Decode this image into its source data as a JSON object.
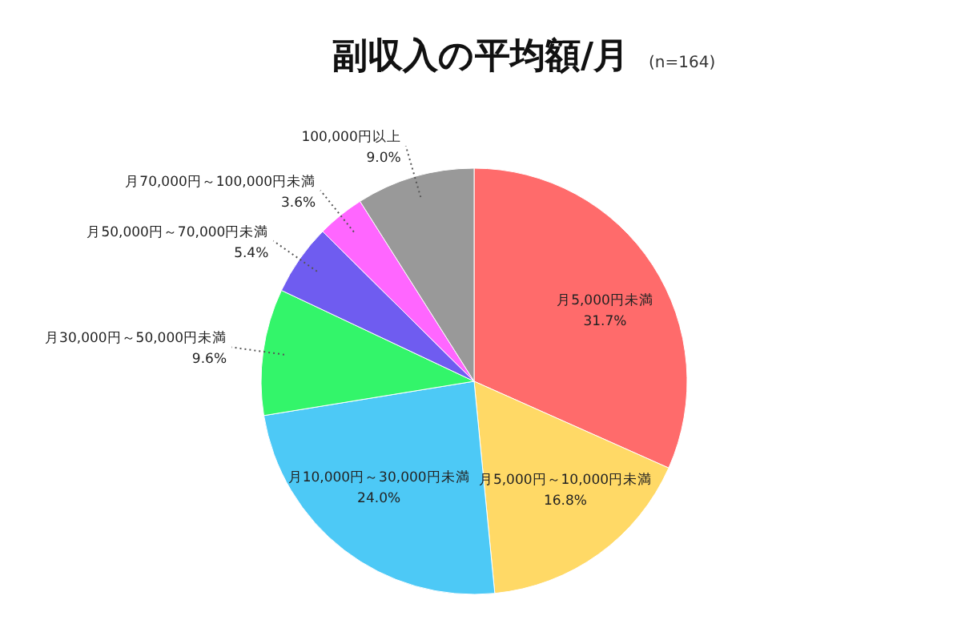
{
  "chart_data": {
    "type": "pie",
    "title": "副収入の平均額/月",
    "subtitle": "(n=164)",
    "categories": [
      "月5,000円未満",
      "月5,000円～10,000円未満",
      "月10,000円～30,000円未満",
      "月30,000円～50,000円未満",
      "月50,000円～70,000円未満",
      "月70,000円～100,000円未満",
      "100,000円以上"
    ],
    "values": [
      31.7,
      16.8,
      24.0,
      9.6,
      5.4,
      3.6,
      9.0
    ],
    "colors": [
      "#ff6b6b",
      "#ffd966",
      "#4dc9f6",
      "#33f56a",
      "#6f5cf0",
      "#ff66ff",
      "#999999"
    ],
    "value_labels": [
      "31.7%",
      "16.8%",
      "24.0%",
      "9.6%",
      "5.4%",
      "3.6%",
      "9.0%"
    ]
  }
}
